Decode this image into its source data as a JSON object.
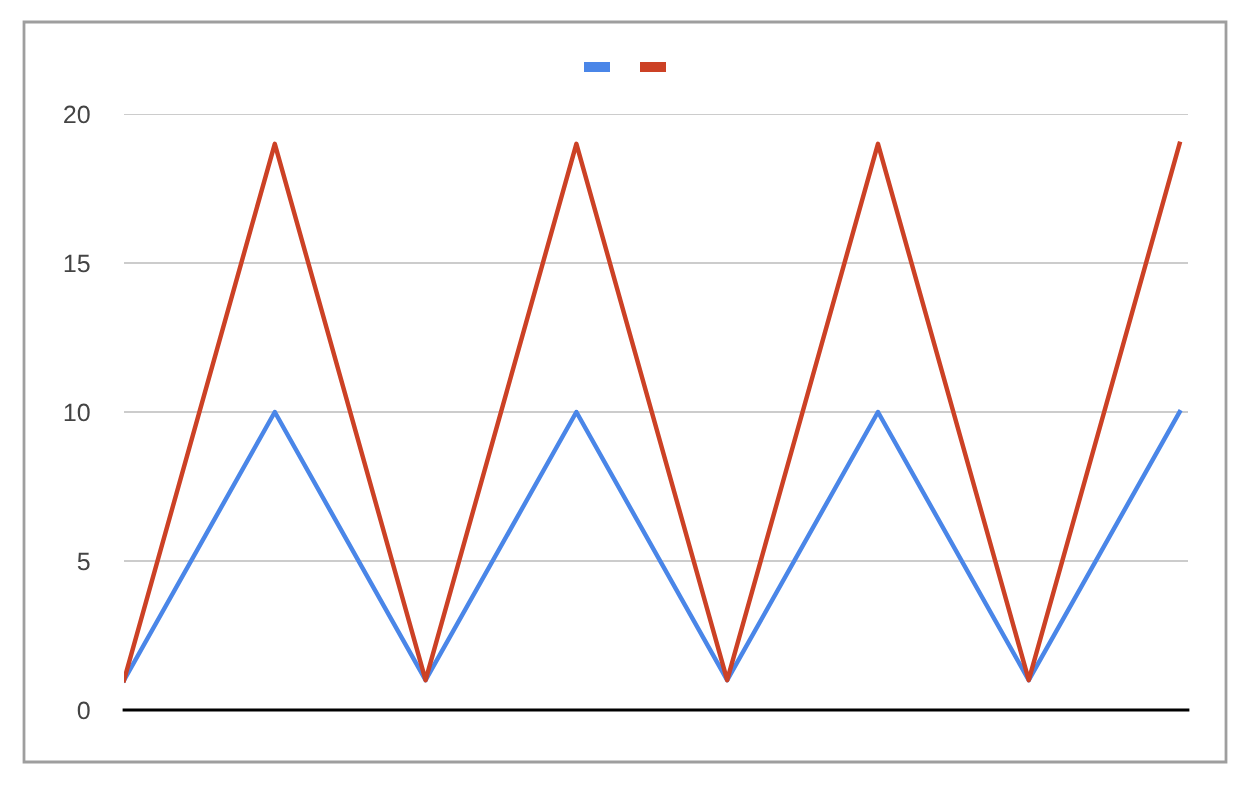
{
  "chart_data": {
    "type": "line",
    "categories": [
      null,
      null,
      null,
      null,
      null,
      null,
      null,
      null
    ],
    "series": [
      {
        "color": "#4a86e8",
        "values": [
          1,
          10,
          1,
          10,
          1,
          10,
          1,
          10
        ]
      },
      {
        "color": "#cc4125",
        "values": [
          1,
          19,
          1,
          19,
          1,
          19,
          1,
          19
        ]
      }
    ],
    "ylim": [
      0,
      20
    ],
    "yticks": [
      0,
      5,
      10,
      15,
      20
    ],
    "grid": "y",
    "marker": "none",
    "line_style": "solid"
  }
}
